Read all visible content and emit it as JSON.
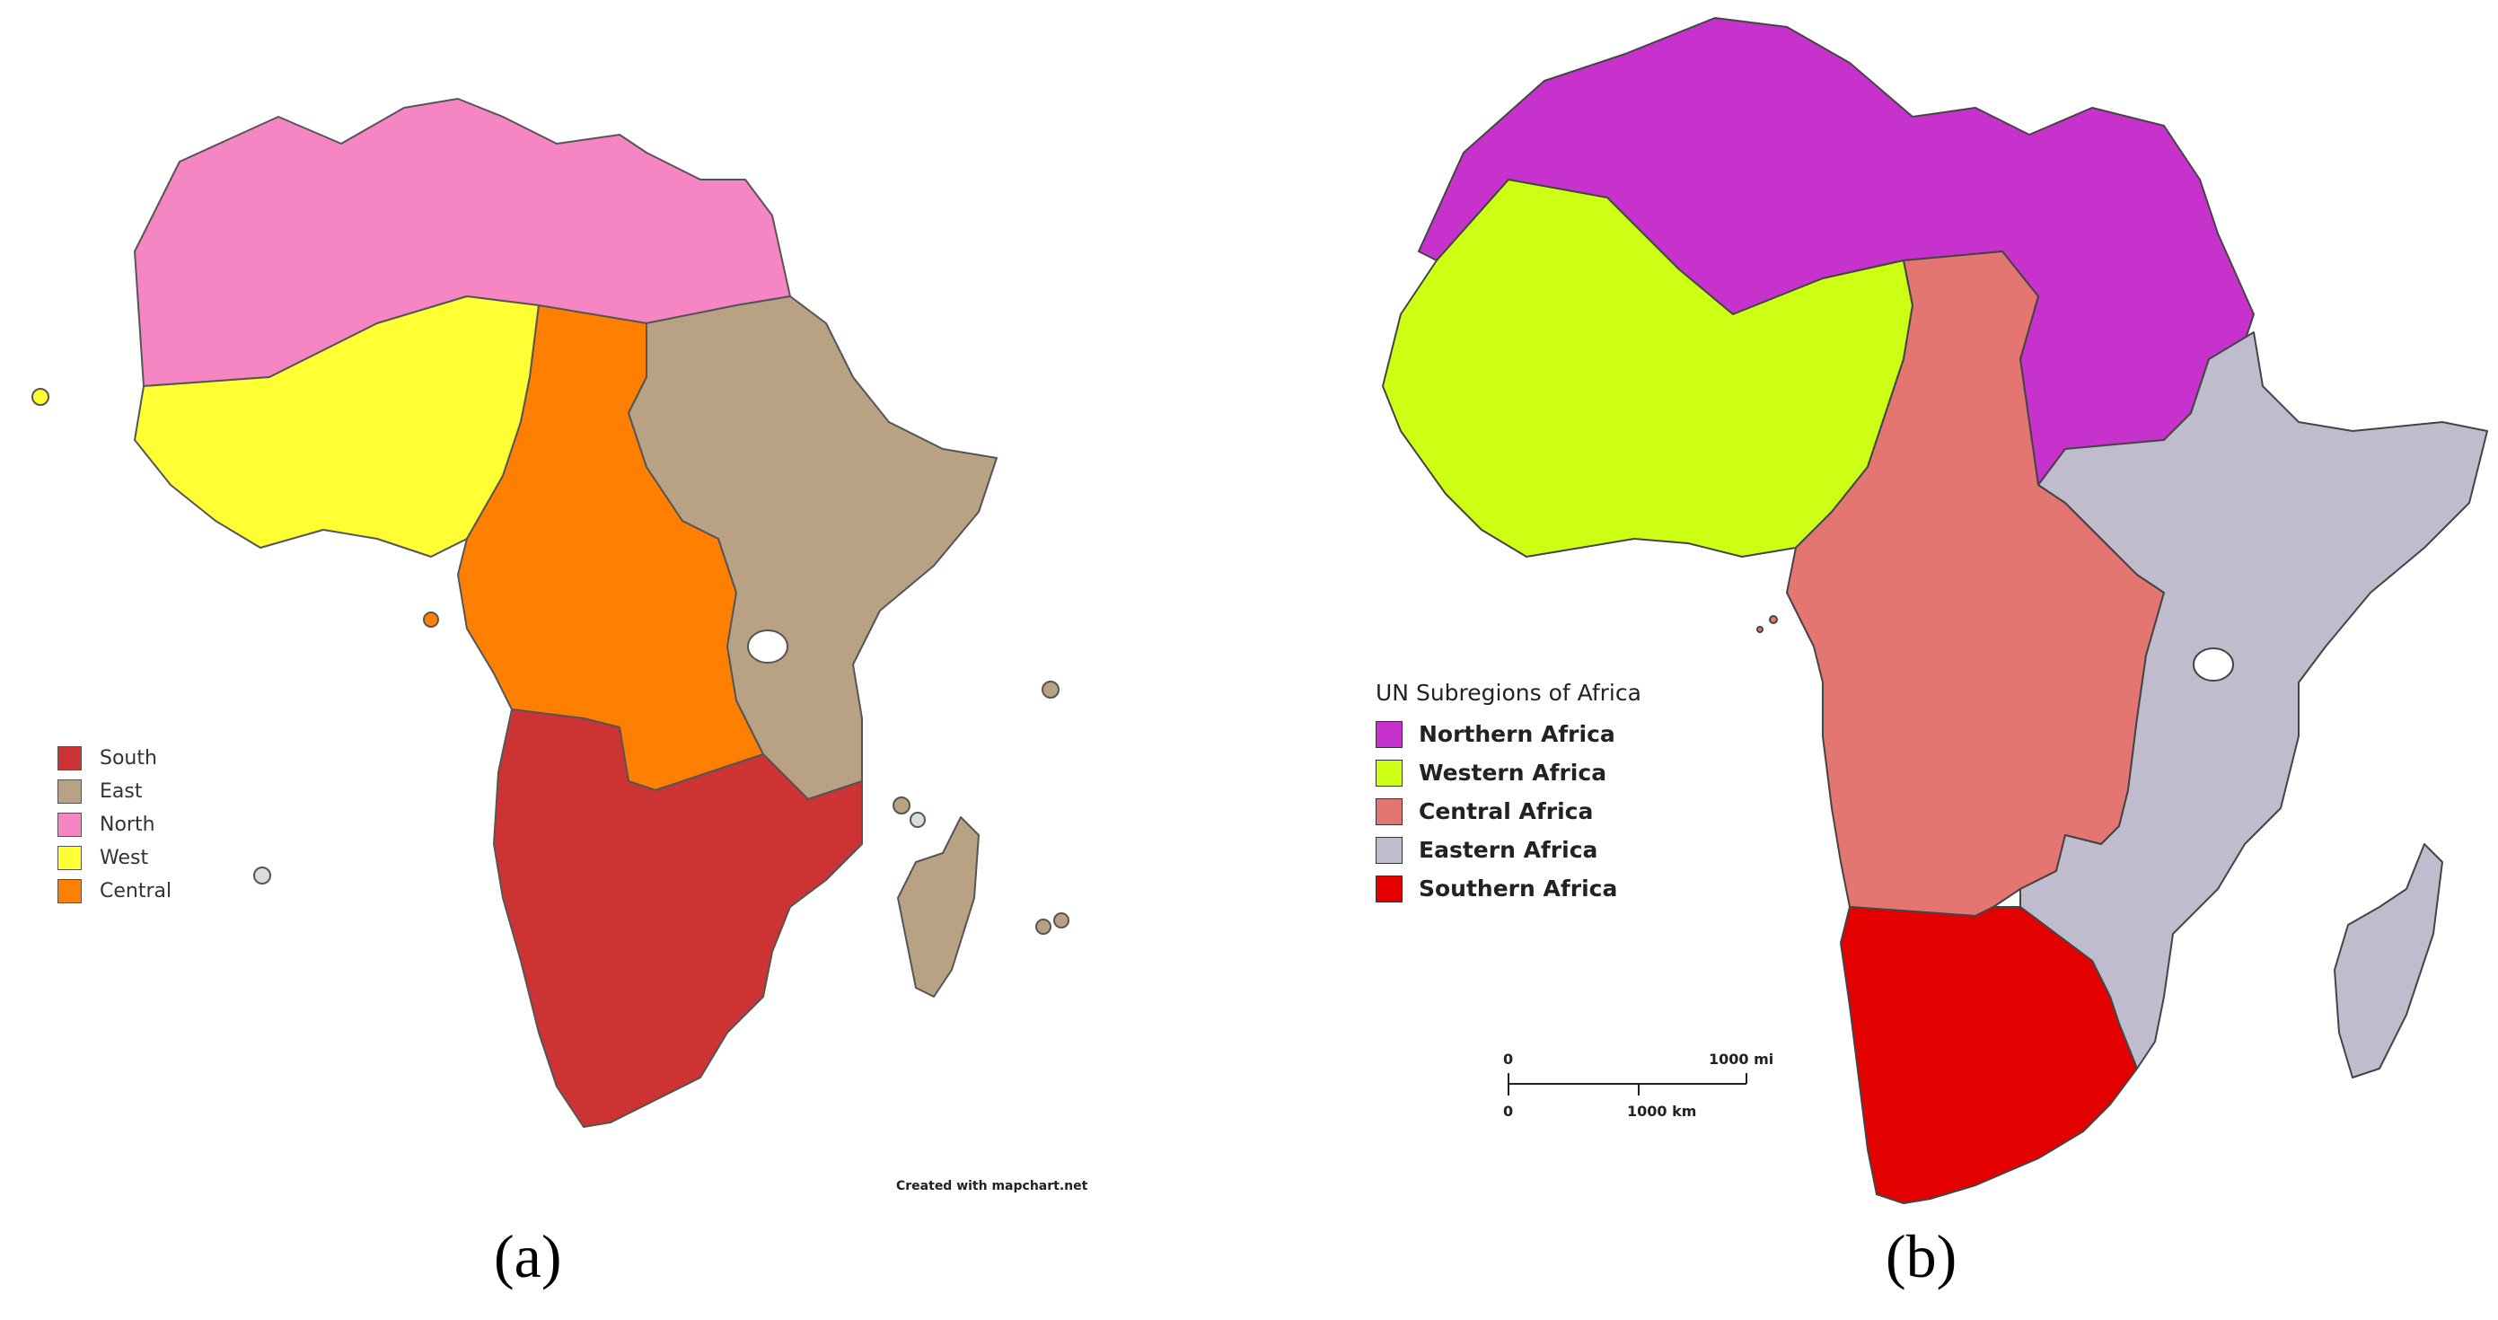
{
  "panel_a": {
    "caption": "(a)",
    "credit": "Created with mapchart.net",
    "legend": [
      {
        "label": "South",
        "color": "#cd3333"
      },
      {
        "label": "East",
        "color": "#b9a184"
      },
      {
        "label": "North",
        "color": "#f585c3"
      },
      {
        "label": "West",
        "color": "#ffff33"
      },
      {
        "label": "Central",
        "color": "#ff7f00"
      }
    ]
  },
  "panel_b": {
    "caption": "(b)",
    "legend_title": "UN Subregions of Africa",
    "legend": [
      {
        "label": "Northern Africa",
        "color": "#c832cc"
      },
      {
        "label": "Western Africa",
        "color": "#ccff14"
      },
      {
        "label": "Central Africa",
        "color": "#e47672"
      },
      {
        "label": "Eastern Africa",
        "color": "#bfbccd"
      },
      {
        "label": "Southern Africa",
        "color": "#e50000"
      }
    ],
    "scale": {
      "zero_top": "0",
      "miles": "1000 mi",
      "zero_bottom": "0",
      "km": "1000 km"
    }
  }
}
